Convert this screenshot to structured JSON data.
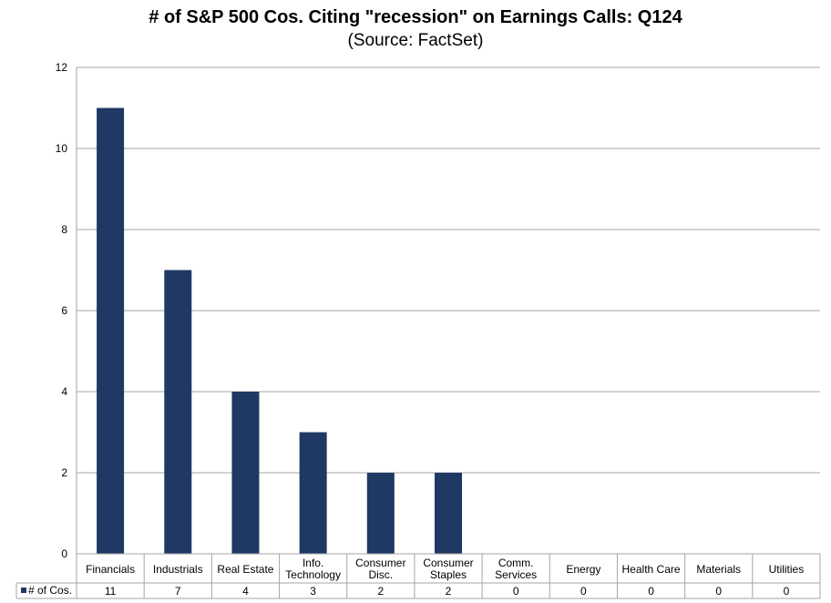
{
  "title": "# of S&P 500 Cos. Citing \"recession\" on Earnings Calls: Q124",
  "subtitle": "(Source: FactSet)",
  "chart_data": {
    "type": "bar",
    "categories": [
      [
        "Financials"
      ],
      [
        "Industrials"
      ],
      [
        "Real Estate"
      ],
      [
        "Info.",
        "Technology"
      ],
      [
        "Consumer",
        "Disc."
      ],
      [
        "Consumer",
        "Staples"
      ],
      [
        "Comm.",
        "Services"
      ],
      [
        "Energy"
      ],
      [
        "Health Care"
      ],
      [
        "Materials"
      ],
      [
        "Utilities"
      ]
    ],
    "series": [
      {
        "name": "# of Cos.",
        "values": [
          11,
          7,
          4,
          3,
          2,
          2,
          0,
          0,
          0,
          0,
          0
        ],
        "color": "#1f3864"
      }
    ],
    "ylim": [
      0,
      12
    ],
    "yticks": [
      0,
      2,
      4,
      6,
      8,
      10,
      12
    ],
    "grid": true,
    "data_table": true,
    "legend": "data-table"
  }
}
